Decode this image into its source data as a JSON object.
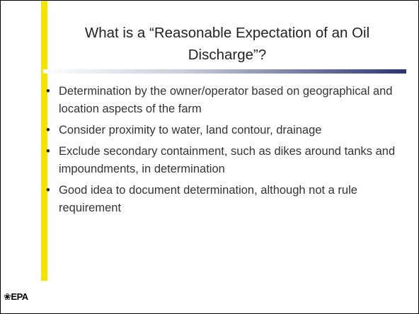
{
  "slide": {
    "title": "What is a “Reasonable Expectation of an Oil Discharge”?",
    "bullets": [
      "Determination by the owner/operator based on geographical and location aspects of the farm",
      "Consider proximity to water, land contour, drainage",
      "Exclude secondary containment, such as dikes around tanks and impoundments, in determination",
      "Good idea to document determination, although not a rule requirement"
    ],
    "logo": "❀EPA"
  }
}
